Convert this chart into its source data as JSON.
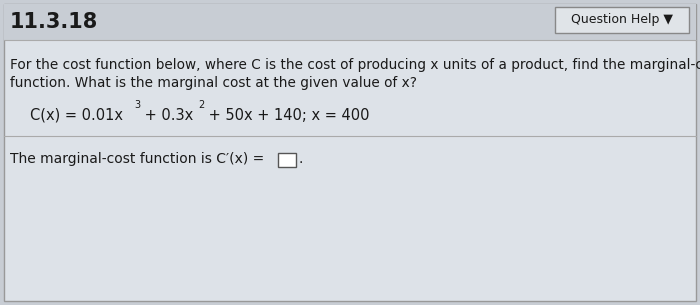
{
  "section_number": "11.3.18",
  "question_help_text": "Question Help ▼",
  "body_line1": "For the cost function below, where C is the cost of producing x units of a product, find the marginal-cost",
  "body_line2": "function. What is the marginal cost at the given value of x?",
  "answer_line": "The marginal-cost function is C′(x) = ",
  "bg_color": "#c8cdd4",
  "panel_color": "#dde2e8",
  "header_color": "#c8cdd4",
  "box_edge_color": "#999999",
  "text_color": "#1a1a1a",
  "divider_color": "#aaaaaa",
  "section_fontsize": 15,
  "body_fontsize": 9.8,
  "formula_fontsize": 10.5,
  "answer_fontsize": 10.0,
  "qhelp_fontsize": 9.0
}
